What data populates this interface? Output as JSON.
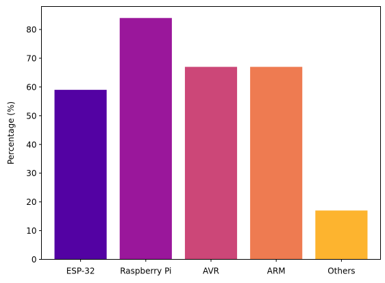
{
  "chart_data": {
    "type": "bar",
    "title": "",
    "xlabel": "",
    "ylabel": "Percentage (%)",
    "categories": [
      "ESP-32",
      "Raspberry Pi",
      "AVR",
      "ARM",
      "Others"
    ],
    "values": [
      59,
      84,
      67,
      67,
      17
    ],
    "colors": [
      "#5302a3",
      "#9a179b",
      "#cc4778",
      "#ee7b51",
      "#fdb42f"
    ],
    "ylim": [
      0,
      88
    ],
    "yticks": [
      0,
      10,
      20,
      30,
      40,
      50,
      60,
      70,
      80
    ],
    "grid": false,
    "legend": "none"
  }
}
